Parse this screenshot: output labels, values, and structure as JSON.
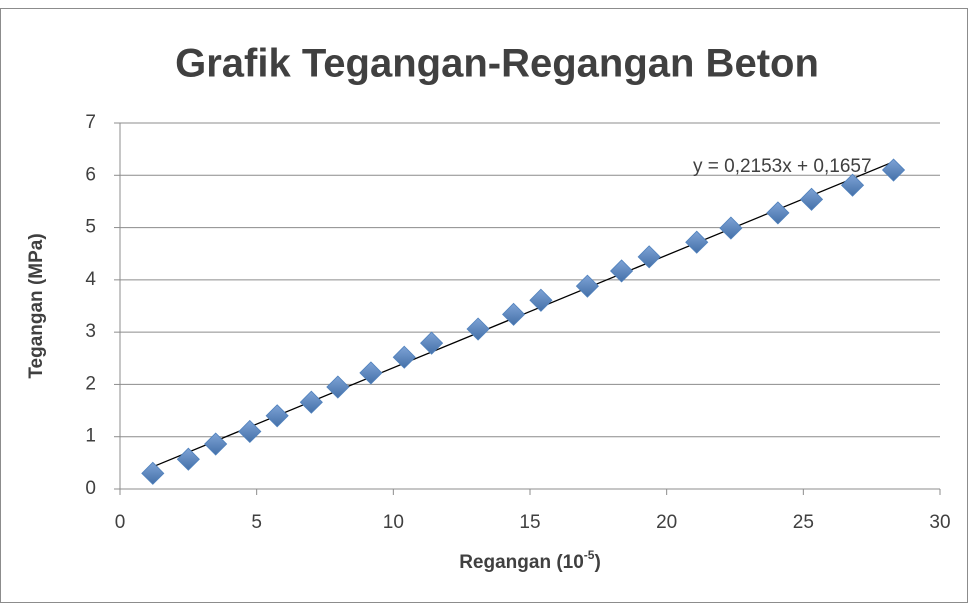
{
  "chart_data": {
    "type": "scatter",
    "title": "Grafik Tegangan-Regangan Beton",
    "x_label": {
      "text": "Regangan (10",
      "sup": "-5",
      "after": ")"
    },
    "y_label": "Tegangan (MPa)",
    "series": [
      {
        "name": "Tegangan",
        "color": "#4f81bd",
        "x": [
          1.2,
          2.5,
          3.5,
          4.75,
          5.75,
          7.0,
          7.97,
          9.18,
          10.4,
          11.4,
          13.1,
          14.4,
          15.4,
          17.1,
          18.35,
          19.36,
          21.1,
          22.35,
          24.07,
          25.3,
          26.8,
          28.3
        ],
        "values": [
          0.3,
          0.57,
          0.86,
          1.1,
          1.4,
          1.66,
          1.95,
          2.22,
          2.52,
          2.79,
          3.06,
          3.34,
          3.61,
          3.88,
          4.17,
          4.44,
          4.72,
          4.99,
          5.28,
          5.54,
          5.81,
          6.1
        ]
      }
    ],
    "trendline": {
      "label": "y = 0,2153x + 0,1657",
      "slope": 0.2153,
      "intercept": 0.1657,
      "color": "#000000"
    },
    "xlim": [
      0,
      30
    ],
    "xticks": [
      0,
      5,
      10,
      15,
      20,
      25,
      30
    ],
    "ylim": [
      0,
      7
    ],
    "yticks": [
      0,
      1,
      2,
      3,
      4,
      5,
      6,
      7
    ],
    "grid": true
  }
}
